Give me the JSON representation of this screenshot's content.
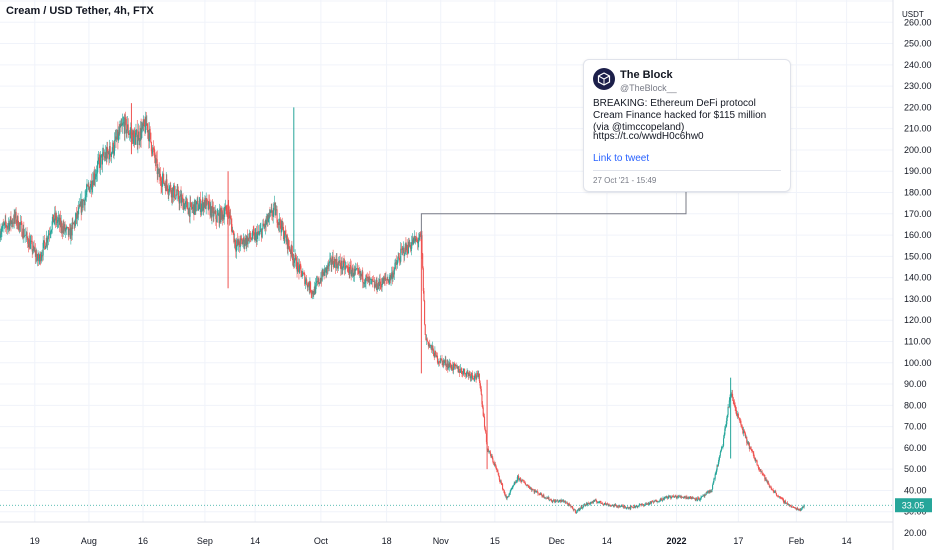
{
  "header": {
    "title": "Cream / USD Tether, 4h, FTX"
  },
  "price_axis": {
    "unit": "USDT"
  },
  "last_price": {
    "label": "33.05",
    "color": "#26a69a"
  },
  "colors": {
    "up": "#26a69a",
    "down": "#ef5350",
    "grid": "#f0f3fa",
    "axis_line": "#e0e3eb"
  },
  "tweet": {
    "author": "The Block",
    "handle": "@TheBlock__",
    "text": "BREAKING: Ethereum DeFi protocol Cream Finance hacked for $115 million (via @timccopeland)",
    "url": "https://t.co/wwdH0c6hw0",
    "link_label": "Link to tweet",
    "date": "27 Oct '21 - 15:49",
    "avatar_icon": "cube-logo-icon"
  },
  "chart_data": {
    "type": "candlestick",
    "title": "Cream / USD Tether, 4h, FTX",
    "ylabel": "USDT",
    "ylim": [
      20,
      270
    ],
    "y_ticks": [
      20,
      30,
      40,
      50,
      60,
      70,
      80,
      90,
      100,
      110,
      120,
      130,
      140,
      150,
      160,
      170,
      180,
      190,
      200,
      210,
      220,
      230,
      240,
      250,
      260,
      270
    ],
    "x_tick_labels": [
      "19",
      "Aug",
      "16",
      "Sep",
      "14",
      "Oct",
      "18",
      "Nov",
      "15",
      "Dec",
      "14",
      "2022",
      "17",
      "Feb",
      "14"
    ],
    "x_tick_dates": [
      "2021-07-19",
      "2021-08-02",
      "2021-08-16",
      "2021-09-01",
      "2021-09-14",
      "2021-10-01",
      "2021-10-18",
      "2021-11-01",
      "2021-11-15",
      "2021-12-01",
      "2021-12-14",
      "2022-01-01",
      "2022-01-17",
      "2022-02-01",
      "2022-02-14"
    ],
    "x_range": [
      "2021-07-10",
      "2022-02-26"
    ],
    "price_path": [
      [
        "2021-07-10",
        162
      ],
      [
        "2021-07-14",
        168
      ],
      [
        "2021-07-18",
        155
      ],
      [
        "2021-07-20",
        148
      ],
      [
        "2021-07-24",
        168
      ],
      [
        "2021-07-28",
        160
      ],
      [
        "2021-08-01",
        178
      ],
      [
        "2021-08-05",
        195
      ],
      [
        "2021-08-08",
        200
      ],
      [
        "2021-08-11",
        212
      ],
      [
        "2021-08-14",
        205
      ],
      [
        "2021-08-17",
        212
      ],
      [
        "2021-08-20",
        188
      ],
      [
        "2021-08-24",
        180
      ],
      [
        "2021-08-28",
        172
      ],
      [
        "2021-09-01",
        175
      ],
      [
        "2021-09-04",
        168
      ],
      [
        "2021-09-07",
        172
      ],
      [
        "2021-09-09",
        155
      ],
      [
        "2021-09-12",
        158
      ],
      [
        "2021-09-15",
        160
      ],
      [
        "2021-09-19",
        172
      ],
      [
        "2021-09-22",
        158
      ],
      [
        "2021-09-25",
        145
      ],
      [
        "2021-09-29",
        133
      ],
      [
        "2021-10-01",
        140
      ],
      [
        "2021-10-04",
        148
      ],
      [
        "2021-10-08",
        144
      ],
      [
        "2021-10-12",
        140
      ],
      [
        "2021-10-15",
        136
      ],
      [
        "2021-10-19",
        140
      ],
      [
        "2021-10-22",
        152
      ],
      [
        "2021-10-25",
        157
      ],
      [
        "2021-10-27",
        158
      ],
      [
        "2021-10-28",
        112
      ],
      [
        "2021-10-31",
        102
      ],
      [
        "2021-11-04",
        98
      ],
      [
        "2021-11-08",
        95
      ],
      [
        "2021-11-11",
        93
      ],
      [
        "2021-11-13",
        60
      ],
      [
        "2021-11-15",
        52
      ],
      [
        "2021-11-18",
        36
      ],
      [
        "2021-11-21",
        46
      ],
      [
        "2021-11-25",
        40
      ],
      [
        "2021-11-30",
        35
      ],
      [
        "2021-12-03",
        35
      ],
      [
        "2021-12-06",
        30
      ],
      [
        "2021-12-08",
        33
      ],
      [
        "2021-12-11",
        35
      ],
      [
        "2021-12-15",
        33
      ],
      [
        "2021-12-20",
        32
      ],
      [
        "2021-12-25",
        34
      ],
      [
        "2021-12-30",
        37
      ],
      [
        "2022-01-03",
        37
      ],
      [
        "2022-01-07",
        36
      ],
      [
        "2022-01-10",
        40
      ],
      [
        "2022-01-13",
        62
      ],
      [
        "2022-01-15",
        86
      ],
      [
        "2022-01-17",
        74
      ],
      [
        "2022-01-19",
        64
      ],
      [
        "2022-01-22",
        52
      ],
      [
        "2022-01-25",
        42
      ],
      [
        "2022-01-28",
        36
      ],
      [
        "2022-01-31",
        32
      ],
      [
        "2022-02-02",
        31
      ],
      [
        "2022-02-03",
        33
      ]
    ],
    "spikes": [
      {
        "date": "2021-08-13",
        "high": 222,
        "low": 198
      },
      {
        "date": "2021-09-07",
        "high": 190,
        "low": 135
      },
      {
        "date": "2021-09-24",
        "high": 220,
        "low": 152
      },
      {
        "date": "2021-10-27",
        "high": 160,
        "low": 95
      },
      {
        "date": "2021-11-13",
        "high": 92,
        "low": 50
      },
      {
        "date": "2022-01-15",
        "high": 93,
        "low": 55
      }
    ],
    "last_value": 33.05,
    "annotation": {
      "date": "2021-10-27",
      "price": 170
    }
  }
}
